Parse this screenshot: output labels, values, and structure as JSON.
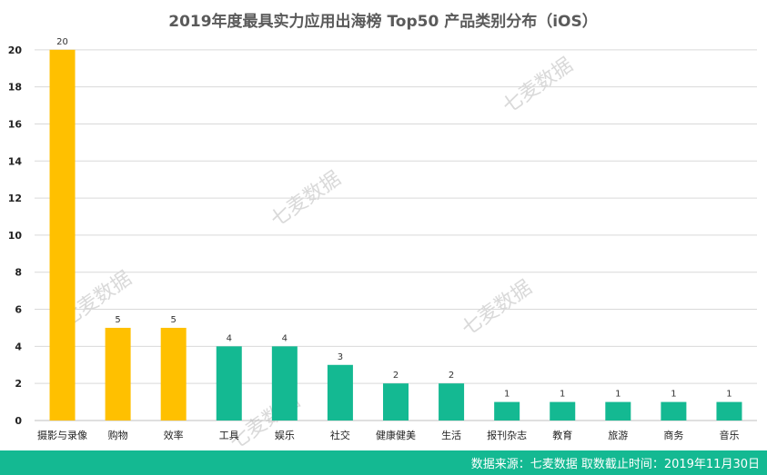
{
  "colors": {
    "highlight": "#FFC000",
    "normal": "#14B992",
    "footer_bg": "#14B992",
    "grid": "#d9d9d9"
  },
  "watermark": "七麦数据",
  "footer": {
    "text": "数据来源：七麦数据   取数截止时间：2019年11月30日"
  },
  "chart_data": {
    "type": "bar",
    "title": "2019年度最具实力应用出海榜 Top50 产品类别分布（iOS）",
    "xlabel": "",
    "ylabel": "",
    "ylim": [
      0,
      22
    ],
    "yticks": [
      0,
      2,
      4,
      6,
      8,
      10,
      12,
      14,
      16,
      18,
      20
    ],
    "categories": [
      "摄影与录像",
      "购物",
      "效率",
      "工具",
      "娱乐",
      "社交",
      "健康健美",
      "生活",
      "报刊杂志",
      "教育",
      "旅游",
      "商务",
      "音乐"
    ],
    "values": [
      20,
      5,
      5,
      4,
      4,
      3,
      2,
      2,
      1,
      1,
      1,
      1,
      1
    ],
    "highlighted": [
      true,
      true,
      true,
      false,
      false,
      false,
      false,
      false,
      false,
      false,
      false,
      false,
      false
    ],
    "grid": true,
    "data_labels": true
  }
}
